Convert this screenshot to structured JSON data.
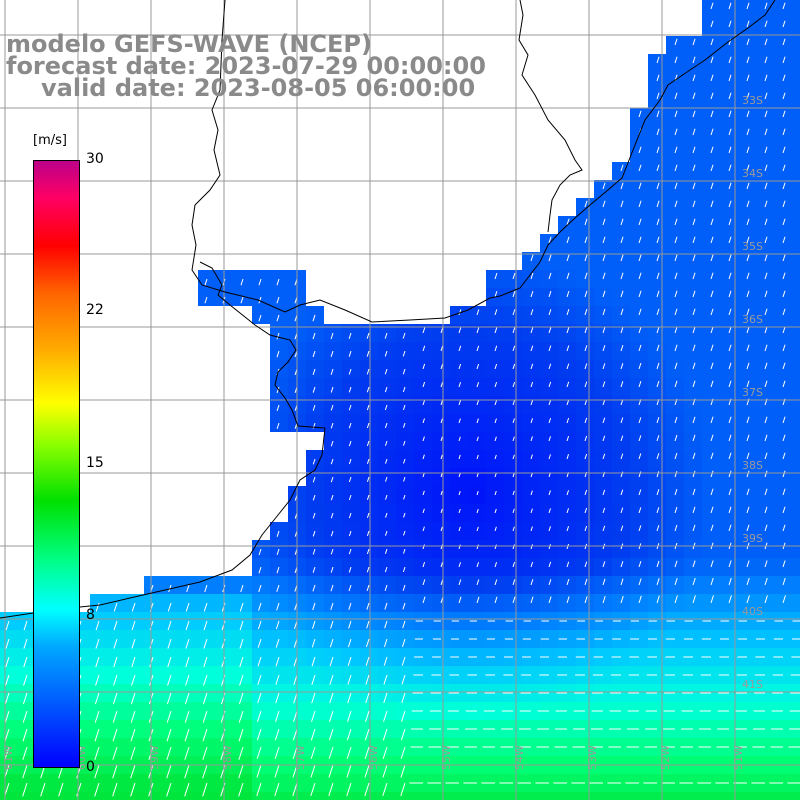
{
  "title": {
    "line1": "modelo GEFS-WAVE (NCEP)",
    "line2": "forecast date: 2023-07-29 00:00:00",
    "line3": "valid date: 2023-08-05 06:00:00"
  },
  "colorbar": {
    "unit": "[m/s]",
    "ticks": [
      "30",
      "22",
      "15",
      "8",
      "0"
    ],
    "range": [
      0,
      30
    ],
    "colors": [
      "#0000ff",
      "#00aaff",
      "#00ffff",
      "#00e000",
      "#ffff00",
      "#ff6600",
      "#ff0000",
      "#bb0088"
    ]
  },
  "map": {
    "lat_labels": [
      "33S",
      "34S",
      "35S",
      "36S",
      "37S",
      "38S",
      "39S",
      "40S",
      "41S"
    ],
    "lon_labels": [
      "61W",
      "60W",
      "59W",
      "58W",
      "57W",
      "56W",
      "55W",
      "54W",
      "53W",
      "52W",
      "51W"
    ],
    "land_color": "#ffffff",
    "grid_color": "#999999",
    "vector_color": "#ffffff"
  }
}
